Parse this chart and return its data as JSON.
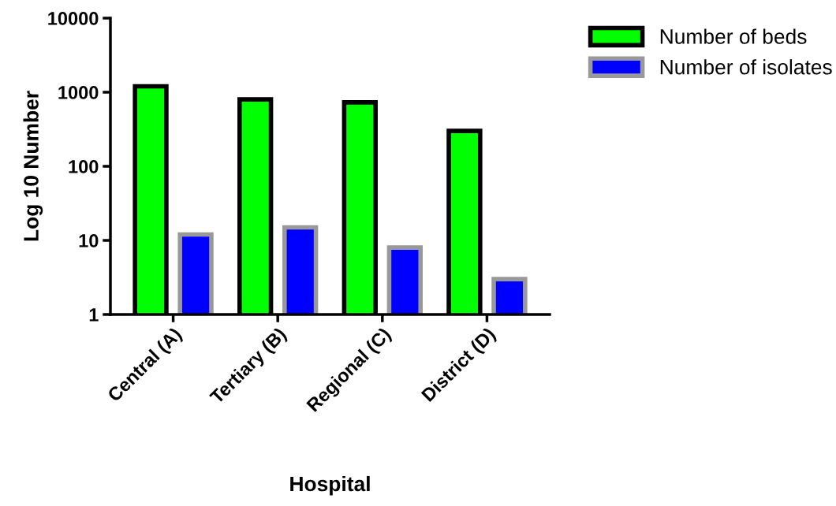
{
  "chart_data": {
    "type": "bar",
    "xlabel": "Hospital",
    "ylabel": "Log 10 Number",
    "categories": [
      "Central (A)",
      "Tertiary (B)",
      "Regional (C)",
      "District (D)"
    ],
    "series": [
      {
        "name": "Number of beds",
        "color": "#00ff00",
        "values": [
          1200,
          800,
          730,
          300
        ]
      },
      {
        "name": "Number of isolates",
        "color": "#0000ff",
        "values": [
          12,
          15,
          8,
          3
        ]
      }
    ],
    "log": true,
    "ylim": [
      1,
      10000
    ],
    "yticks": [
      1,
      10,
      100,
      1000,
      10000
    ],
    "grid": false,
    "legend": "top right"
  }
}
